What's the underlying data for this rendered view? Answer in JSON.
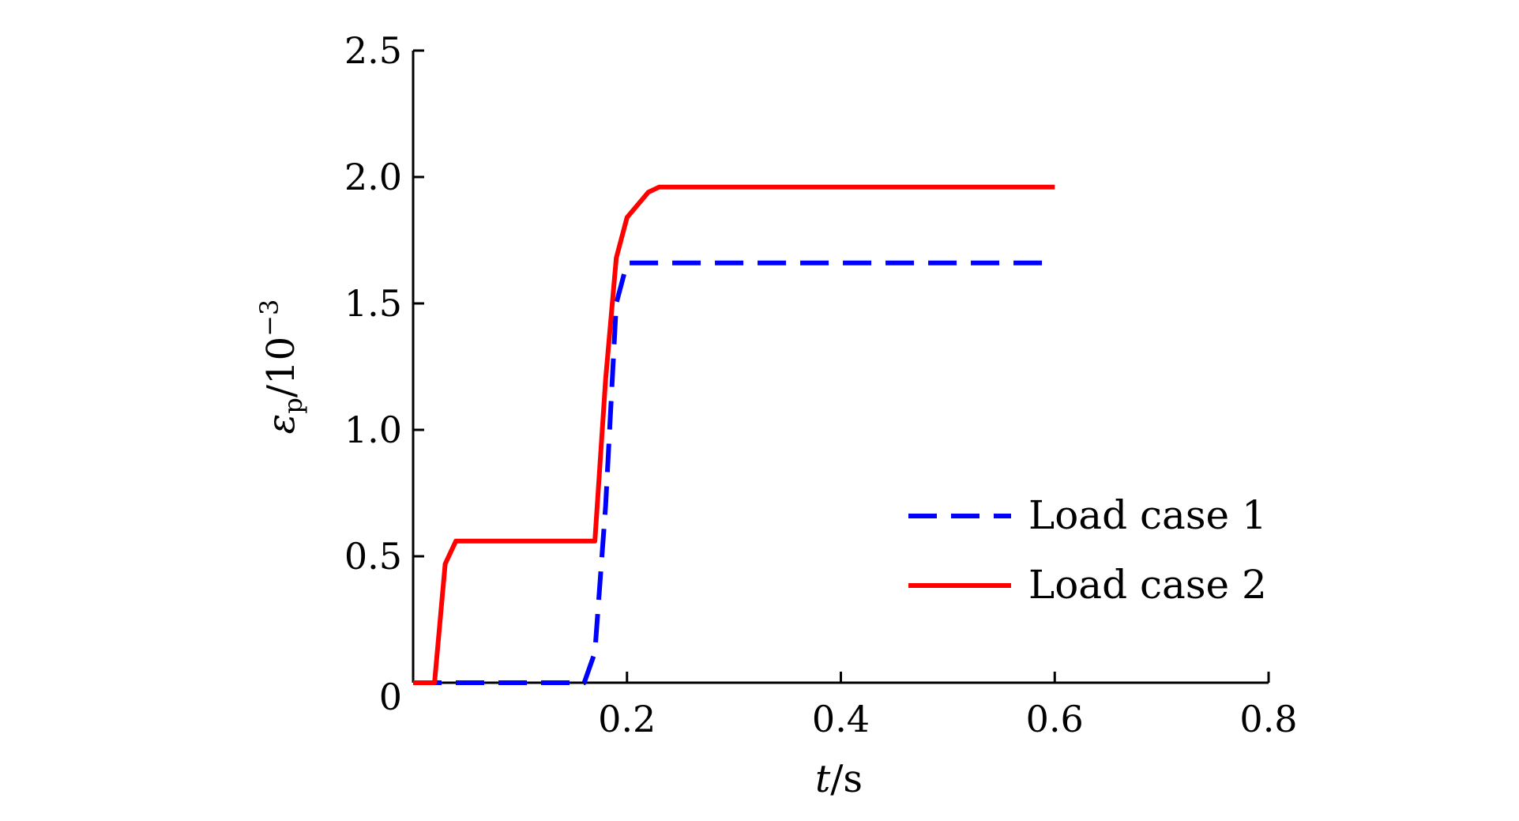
{
  "chart_data": {
    "type": "line",
    "xlabel": {
      "var": "t",
      "unit": "/s"
    },
    "ylabel": {
      "var": "ε",
      "sub": "p",
      "unit": "/10",
      "sup": "−3"
    },
    "xlim": [
      0,
      0.8
    ],
    "ylim": [
      0,
      2.5
    ],
    "xticks": [
      0,
      0.2,
      0.4,
      0.6,
      0.8
    ],
    "xtick_labels": [
      "",
      "0.2",
      "0.4",
      "0.6",
      "0.8"
    ],
    "yticks": [
      0,
      0.5,
      1.0,
      1.5,
      2.0,
      2.5
    ],
    "ytick_labels": [
      "0",
      "0.5",
      "1.0",
      "1.5",
      "2.0",
      "2.5"
    ],
    "grid": false,
    "legend_position": "lower-right",
    "series": [
      {
        "name": "Load case 1",
        "color": "#0000ff",
        "style": "dashed",
        "x": [
          0,
          0.15,
          0.16,
          0.17,
          0.18,
          0.19,
          0.2,
          0.6
        ],
        "y": [
          0,
          0,
          0,
          0.12,
          0.7,
          1.5,
          1.66,
          1.66
        ]
      },
      {
        "name": "Load case 2",
        "color": "#ff0000",
        "style": "solid",
        "x": [
          0,
          0.02,
          0.03,
          0.04,
          0.17,
          0.18,
          0.19,
          0.2,
          0.22,
          0.23,
          0.6
        ],
        "y": [
          0,
          0,
          0.47,
          0.56,
          0.56,
          1.2,
          1.68,
          1.84,
          1.94,
          1.96,
          1.96
        ]
      }
    ]
  }
}
